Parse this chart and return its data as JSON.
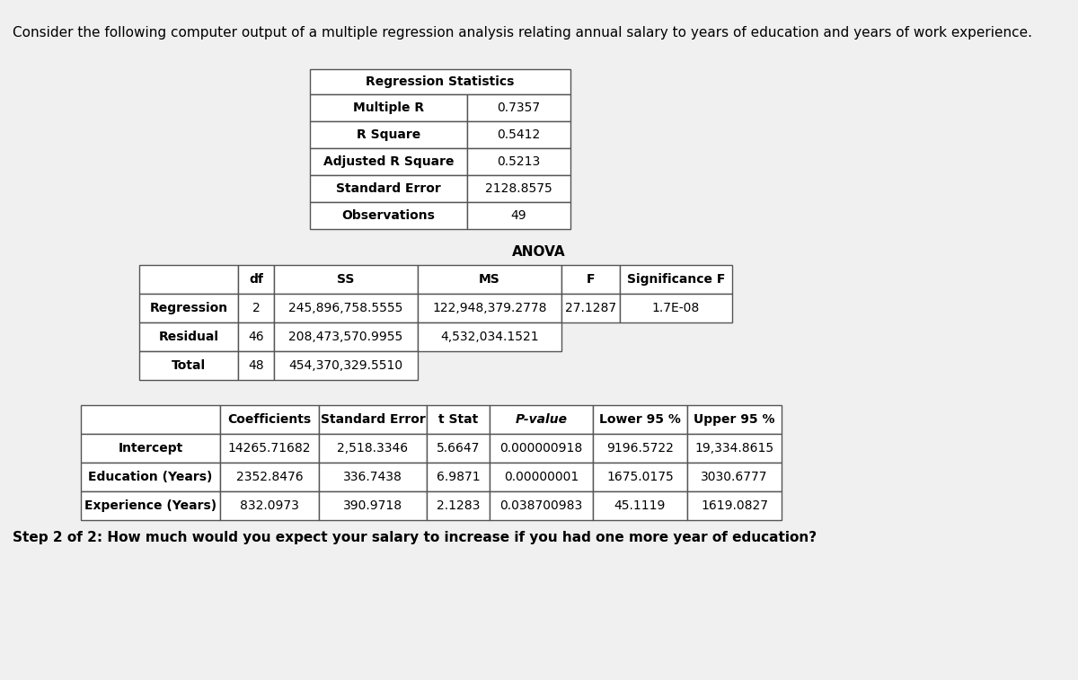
{
  "title": "Consider the following computer output of a multiple regression analysis relating annual salary to years of education and years of work experience.",
  "step_text": "Step 2 of 2: How much would you expect your salary to increase if you had one more year of education?",
  "reg_stats_title": "Regression Statistics",
  "reg_stats": [
    [
      "Multiple R",
      "0.7357"
    ],
    [
      "R Square",
      "0.5412"
    ],
    [
      "Adjusted R Square",
      "0.5213"
    ],
    [
      "Standard Error",
      "2128.8575"
    ],
    [
      "Observations",
      "49"
    ]
  ],
  "anova_title": "ANOVA",
  "anova_header": [
    "",
    "df",
    "SS",
    "MS",
    "F",
    "Significance F"
  ],
  "anova_rows": [
    [
      "Regression",
      "2",
      "245,896,758.5555",
      "122,948,379.2778",
      "27.1287",
      "1.7E-08"
    ],
    [
      "Residual",
      "46",
      "208,473,570.9955",
      "4,532,034.1521",
      "",
      ""
    ],
    [
      "Total",
      "48",
      "454,370,329.5510",
      "",
      "",
      ""
    ]
  ],
  "coeff_header": [
    "",
    "Coefficients",
    "Standard Error",
    "t Stat",
    "P-value",
    "Lower 95 %",
    "Upper 95 %"
  ],
  "coeff_rows": [
    [
      "Intercept",
      "14265.71682",
      "2,518.3346",
      "5.6647",
      "0.000000918",
      "9196.5722",
      "19,334.8615"
    ],
    [
      "Education (Years)",
      "2352.8476",
      "336.7438",
      "6.9871",
      "0.00000001",
      "1675.0175",
      "3030.6777"
    ],
    [
      "Experience (Years)",
      "832.0973",
      "390.9718",
      "2.1283",
      "0.038700983",
      "45.1119",
      "1619.0827"
    ]
  ],
  "bg_color": "#f0f0f0",
  "table_bg": "#ffffff",
  "border_color": "#555555",
  "text_color": "#000000",
  "title_fontsize": 11.0,
  "body_fontsize": 10.0,
  "step_fontsize": 11.0
}
